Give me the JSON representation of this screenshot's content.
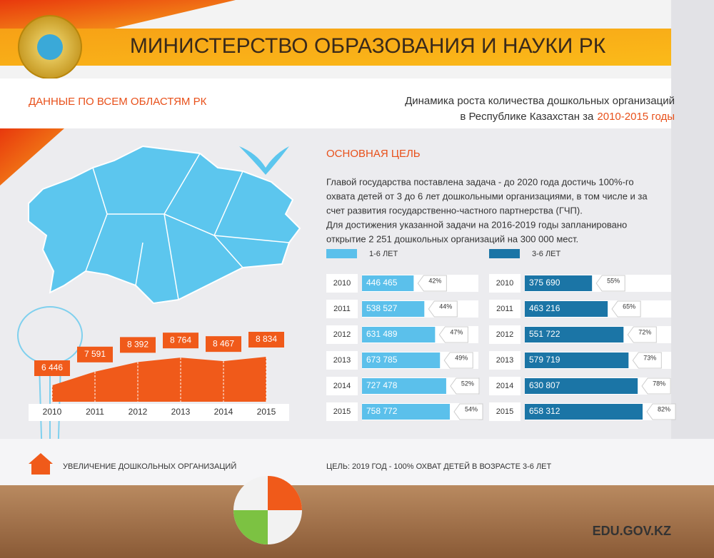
{
  "header": {
    "title": "МИНИСТЕРСТВО ОБРАЗОВАНИЯ И НАУКИ РК"
  },
  "regions_label": "ДАННЫЕ ПО ВСЕМ ОБЛАСТЯМ РК",
  "dynamics_title": {
    "line1": "Динамика роста количества дошкольных организаций",
    "line2": "в Республике Казахстан за",
    "highlight": "2010-2015 годы"
  },
  "goal": {
    "heading": "ОСНОВНАЯ ЦЕЛЬ",
    "lines": [
      "Главой государства поставлена задача - до 2020 года достичь 100%-го",
      "охвата детей от 3 до 6 лет дошкольными организациями, в том числе и за",
      "счет развития государственно-частного партнерства (ГЧП).",
      "Для достижения указанной задачи на 2016-2019 годы запланировано",
      "открытие 2 251 дошкольных организаций на 300 000 мест."
    ]
  },
  "chart_data": [
    {
      "type": "area",
      "legend": "УВЕЛИЧЕНИЕ ДОШКОЛЬНЫХ ОРГАНИЗАЦИЙ",
      "color": "#f05a1a",
      "categories": [
        "2010",
        "2011",
        "2012",
        "2013",
        "2014",
        "2015"
      ],
      "values": [
        6446,
        7591,
        8392,
        8764,
        8467,
        8834
      ],
      "value_labels": [
        "6 446",
        "7 591",
        "8 392",
        "8 764",
        "8 467",
        "8 834"
      ]
    },
    {
      "type": "hbar",
      "categories": [
        "2010",
        "2011",
        "2012",
        "2013",
        "2014",
        "2015"
      ],
      "series": [
        {
          "name": "1-6 ЛЕТ",
          "color": "#5bc0eb",
          "values": [
            446465,
            538527,
            631489,
            673785,
            727478,
            758772
          ],
          "value_labels": [
            "446 465",
            "538 527",
            "631 489",
            "673 785",
            "727 478",
            "758 772"
          ],
          "shares": [
            42,
            44,
            47,
            49,
            52,
            54
          ],
          "share_labels": [
            "42%",
            "44%",
            "47%",
            "49%",
            "52%",
            "54%"
          ]
        }
      ]
    },
    {
      "type": "hbar",
      "categories": [
        "2010",
        "2011",
        "2012",
        "2013",
        "2014",
        "2015"
      ],
      "series": [
        {
          "name": "3-6 ЛЕТ",
          "color": "#1b75a6",
          "values": [
            375690,
            463216,
            551722,
            579719,
            630807,
            658312
          ],
          "value_labels": [
            "375 690",
            "463 216",
            "551 722",
            "579 719",
            "630 807",
            "658 312"
          ],
          "shares": [
            55,
            65,
            72,
            73,
            78,
            82
          ],
          "share_labels": [
            "55%",
            "65%",
            "72%",
            "73%",
            "78%",
            "82%"
          ]
        }
      ]
    }
  ],
  "footer": {
    "goal": "ЦЕЛЬ: 2019 ГОД - 100% ОХВАТ ДЕТЕЙ В ВОЗРАСТЕ 3-6 ЛЕТ",
    "site": "EDU.GOV.KZ"
  }
}
